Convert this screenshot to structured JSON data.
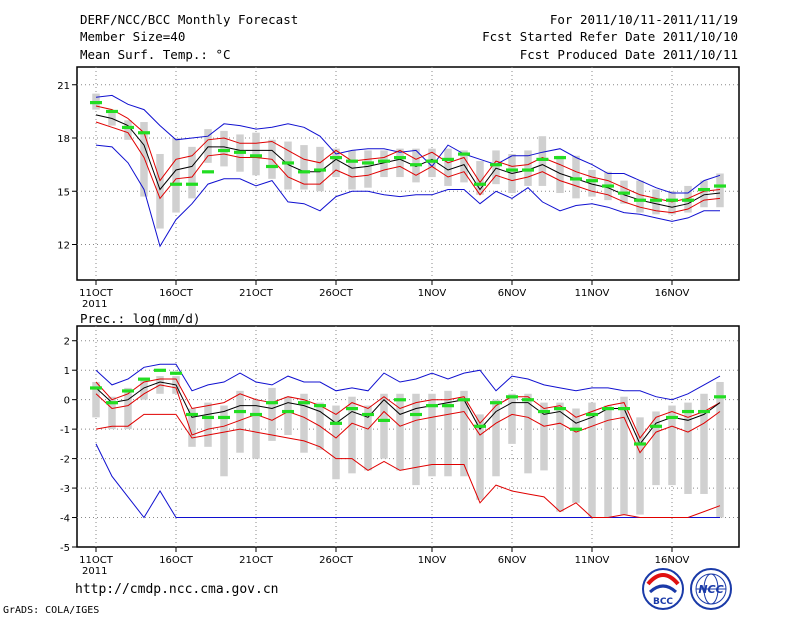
{
  "header": {
    "title": "DERF/NCC/BCC Monthly Forecast",
    "member_size": "Member Size=40",
    "variable_top": "Mean Surf. Temp.: °C",
    "period": "For 2011/10/11-2011/11/19",
    "fcst_started": "Fcst Started Refer Date 2011/10/10",
    "fcst_produced": "Fcst Produced Date 2011/10/11"
  },
  "bottom_label": "Prec.: log(mm/d)",
  "footer": {
    "url": "http://cmdp.ncc.cma.gov.cn",
    "grads": "GrADS: COLA/IGES",
    "logo1_text": "BCC",
    "logo2_text": "NCC"
  },
  "colors": {
    "envelope": "#1010d0",
    "spread": "#e00000",
    "mean": "#000000",
    "box": "#d0d0d0",
    "observed": "#22dd22"
  },
  "chart_data": [
    {
      "type": "line",
      "title": "Mean Surf. Temp.: °C",
      "x": [
        1,
        2,
        3,
        4,
        5,
        6,
        7,
        8,
        9,
        10,
        11,
        12,
        13,
        14,
        15,
        16,
        17,
        18,
        19,
        20,
        21,
        22,
        23,
        24,
        25,
        26,
        27,
        28,
        28.9,
        30,
        31,
        32,
        33,
        34,
        35,
        36,
        37,
        38,
        39,
        40
      ],
      "xticks": [
        {
          "d": 1,
          "label": "11OCT"
        },
        {
          "d": 6,
          "label": "16OCT"
        },
        {
          "d": 11,
          "label": "21OCT"
        },
        {
          "d": 16,
          "label": "26OCT"
        },
        {
          "d": 22,
          "label": "1NOV"
        },
        {
          "d": 27,
          "label": "6NOV"
        },
        {
          "d": 32,
          "label": "11NOV"
        },
        {
          "d": 37,
          "label": "16NOV"
        }
      ],
      "year_label": "2011",
      "ylim": [
        10,
        22
      ],
      "yticks": [
        12,
        15,
        18,
        21
      ],
      "series": [
        {
          "name": "max",
          "values": [
            20.3,
            20.4,
            19.9,
            19.6,
            18.7,
            17.9,
            18.0,
            18.1,
            18.8,
            18.7,
            18.5,
            18.6,
            18.8,
            18.6,
            18.1,
            17.1,
            17.3,
            17.4,
            17.4,
            17.2,
            17.3,
            16.4,
            17.6,
            17.1,
            16.8,
            16.5,
            17.0,
            17.0,
            17.2,
            17.4,
            16.9,
            16.5,
            16.0,
            16.0,
            15.6,
            15.2,
            14.9,
            14.9,
            15.6,
            15.9
          ]
        },
        {
          "name": "min",
          "values": [
            17.6,
            17.5,
            16.6,
            15.1,
            11.9,
            13.4,
            14.3,
            15.4,
            15.7,
            15.7,
            15.3,
            15.6,
            14.4,
            14.3,
            13.9,
            14.7,
            15.0,
            15.0,
            14.8,
            14.7,
            14.8,
            14.8,
            15.1,
            15.1,
            14.3,
            15.0,
            14.6,
            15.2,
            14.4,
            13.9,
            14.2,
            14.3,
            14.1,
            13.8,
            13.7,
            13.5,
            13.3,
            13.5,
            13.9,
            13.9
          ]
        },
        {
          "name": "upper",
          "values": [
            19.8,
            19.6,
            19.1,
            18.3,
            15.6,
            16.8,
            17.0,
            17.9,
            18.0,
            17.7,
            17.7,
            17.8,
            17.3,
            16.8,
            16.6,
            17.3,
            16.7,
            16.8,
            16.9,
            17.3,
            16.8,
            17.2,
            16.6,
            16.9,
            15.5,
            16.7,
            16.4,
            16.5,
            16.9,
            16.5,
            16.1,
            15.8,
            15.6,
            15.2,
            14.8,
            14.6,
            14.4,
            14.6,
            15.0,
            15.1
          ]
        },
        {
          "name": "lower",
          "values": [
            18.9,
            18.6,
            18.3,
            16.9,
            14.6,
            15.7,
            15.8,
            17.0,
            17.1,
            16.9,
            16.9,
            16.8,
            15.8,
            15.4,
            15.4,
            16.2,
            15.8,
            15.9,
            16.2,
            16.4,
            15.9,
            16.4,
            15.8,
            16.1,
            14.8,
            15.9,
            15.6,
            15.8,
            16.1,
            15.6,
            15.3,
            15.0,
            14.8,
            14.4,
            14.1,
            13.9,
            13.8,
            14.0,
            14.5,
            14.6
          ]
        },
        {
          "name": "mean",
          "values": [
            19.3,
            19.1,
            18.7,
            17.6,
            15.1,
            16.2,
            16.4,
            17.5,
            17.5,
            17.3,
            17.3,
            17.3,
            16.5,
            16.1,
            16.1,
            16.8,
            16.3,
            16.4,
            16.6,
            16.8,
            16.4,
            16.8,
            16.2,
            16.5,
            15.1,
            16.3,
            16.0,
            16.2,
            16.5,
            16.0,
            15.7,
            15.4,
            15.2,
            14.8,
            14.5,
            14.3,
            14.1,
            14.3,
            14.8,
            14.9
          ]
        },
        {
          "name": "box_top",
          "values": [
            20.5,
            19.4,
            19.0,
            18.9,
            17.1,
            18.0,
            17.5,
            18.5,
            18.4,
            18.2,
            18.3,
            17.9,
            17.8,
            17.6,
            17.5,
            17.4,
            17.3,
            17.3,
            17.3,
            17.4,
            17.4,
            17.4,
            17.4,
            17.3,
            16.7,
            17.3,
            17.1,
            17.3,
            18.1,
            17.0,
            17.0,
            16.2,
            16.1,
            15.6,
            15.6,
            15.1,
            15.0,
            15.3,
            15.6,
            16.0
          ]
        },
        {
          "name": "box_bottom",
          "values": [
            19.6,
            18.7,
            17.9,
            14.7,
            12.9,
            13.8,
            14.6,
            16.6,
            16.4,
            16.1,
            15.9,
            15.7,
            15.1,
            15.1,
            15.0,
            15.8,
            15.1,
            15.2,
            15.8,
            15.8,
            15.5,
            15.8,
            15.3,
            15.5,
            14.8,
            15.4,
            14.9,
            15.3,
            15.3,
            14.9,
            14.6,
            14.7,
            14.5,
            14.3,
            13.8,
            13.7,
            13.7,
            13.8,
            14.1,
            14.1
          ]
        },
        {
          "name": "observed",
          "values": [
            20.0,
            19.5,
            18.6,
            18.3,
            null,
            15.4,
            15.4,
            16.1,
            17.3,
            17.2,
            17.0,
            16.4,
            16.6,
            16.1,
            16.2,
            16.9,
            16.7,
            16.6,
            16.7,
            16.9,
            16.5,
            16.7,
            16.8,
            17.1,
            15.4,
            16.5,
            16.2,
            16.2,
            16.8,
            16.9,
            15.7,
            15.6,
            15.3,
            14.9,
            14.5,
            14.5,
            14.5,
            14.5,
            15.1,
            15.3
          ]
        }
      ]
    },
    {
      "type": "line",
      "title": "Prec.: log(mm/d)",
      "x": [
        1,
        2,
        3,
        4,
        5,
        6,
        7,
        8,
        9,
        10,
        11,
        12,
        13,
        14,
        15,
        16,
        17,
        18,
        19,
        20,
        21,
        22,
        23,
        24,
        25,
        26,
        27,
        28,
        29,
        30,
        31,
        32,
        33,
        34,
        35,
        36,
        37,
        38,
        39,
        40
      ],
      "xticks": [
        {
          "d": 1,
          "label": "11OCT"
        },
        {
          "d": 6,
          "label": "16OCT"
        },
        {
          "d": 11,
          "label": "21OCT"
        },
        {
          "d": 16,
          "label": "26OCT"
        },
        {
          "d": 22,
          "label": "1NOV"
        },
        {
          "d": 27,
          "label": "6NOV"
        },
        {
          "d": 32,
          "label": "11NOV"
        },
        {
          "d": 37,
          "label": "16NOV"
        }
      ],
      "year_label": "2011",
      "ylim": [
        -5,
        2.5
      ],
      "yticks": [
        -5,
        -4,
        -3,
        -2,
        -1,
        0,
        1,
        2
      ],
      "series": [
        {
          "name": "max",
          "values": [
            1.0,
            0.5,
            0.7,
            1.1,
            1.2,
            1.2,
            0.3,
            0.5,
            0.6,
            0.9,
            0.6,
            0.5,
            0.8,
            0.6,
            0.6,
            0.3,
            0.4,
            0.3,
            0.9,
            0.6,
            0.7,
            0.9,
            0.7,
            0.9,
            1.0,
            0.3,
            0.8,
            0.7,
            0.5,
            0.4,
            0.3,
            0.4,
            0.4,
            0.3,
            0.3,
            0.1,
            0.0,
            0.2,
            0.5,
            0.8
          ]
        },
        {
          "name": "min",
          "values": [
            -1.5,
            -2.6,
            -3.3,
            -4.0,
            -3.1,
            -4.0,
            -4.0,
            -4.0,
            -4.0,
            -4.0,
            -4.0,
            -4.0,
            -4.0,
            -4.0,
            -4.0,
            -4.0,
            -4.0,
            -4.0,
            -4.0,
            -4.0,
            -4.0,
            -4.0,
            -4.0,
            -4.0,
            -4.0,
            -4.0,
            -4.0,
            -4.0,
            -4.0,
            -4.0,
            -4.0,
            -4.0,
            -4.0,
            -4.0,
            -4.0,
            -4.0,
            -4.0,
            -4.0,
            -4.0,
            -4.0
          ]
        },
        {
          "name": "upper",
          "values": [
            0.6,
            0.0,
            0.2,
            0.6,
            0.7,
            0.7,
            -0.3,
            -0.2,
            -0.1,
            0.2,
            0.0,
            -0.1,
            0.1,
            0.0,
            -0.2,
            -0.5,
            -0.1,
            -0.3,
            0.1,
            -0.3,
            -0.1,
            0.0,
            0.0,
            0.1,
            -0.8,
            -0.2,
            0.1,
            0.1,
            -0.3,
            -0.2,
            -0.6,
            -0.4,
            -0.2,
            -0.1,
            -1.3,
            -0.6,
            -0.4,
            -0.6,
            -0.4,
            -0.1
          ]
        },
        {
          "name": "lower",
          "values": [
            0.2,
            -0.3,
            -0.2,
            0.2,
            0.5,
            0.4,
            -1.2,
            -1.0,
            -0.9,
            -0.7,
            -0.5,
            -0.7,
            -0.4,
            -0.6,
            -0.9,
            -1.3,
            -0.8,
            -1.0,
            -0.4,
            -0.9,
            -0.7,
            -0.6,
            -0.5,
            -0.4,
            -1.2,
            -0.8,
            -0.5,
            -0.6,
            -0.9,
            -0.8,
            -1.1,
            -0.9,
            -0.7,
            -0.6,
            -1.8,
            -1.1,
            -0.9,
            -1.1,
            -0.8,
            -0.4
          ]
        },
        {
          "name": "lowest",
          "values": [
            -1.0,
            -0.9,
            -0.9,
            -0.5,
            -0.5,
            -0.5,
            -1.3,
            -1.2,
            -1.1,
            -1.0,
            -1.1,
            -1.2,
            -1.3,
            -1.4,
            -1.6,
            -2.0,
            -2.0,
            -2.4,
            -2.1,
            -2.4,
            -2.3,
            -2.2,
            -2.2,
            -2.2,
            -3.5,
            -2.9,
            -3.1,
            -3.2,
            -3.3,
            -3.8,
            -3.5,
            -4.0,
            -4.0,
            -3.9,
            -4.0,
            -4.0,
            -4.0,
            -4.0,
            -3.8,
            -3.6
          ]
        },
        {
          "name": "mean",
          "values": [
            0.4,
            -0.1,
            0.0,
            0.4,
            0.6,
            0.5,
            -0.6,
            -0.5,
            -0.4,
            -0.2,
            -0.2,
            -0.3,
            -0.1,
            -0.2,
            -0.4,
            -0.8,
            -0.4,
            -0.6,
            0.0,
            -0.5,
            -0.3,
            -0.2,
            -0.1,
            0.0,
            -1.0,
            -0.4,
            -0.1,
            -0.1,
            -0.5,
            -0.4,
            -0.8,
            -0.6,
            -0.3,
            -0.3,
            -1.5,
            -0.8,
            -0.6,
            -0.7,
            -0.5,
            -0.1
          ]
        },
        {
          "name": "box_top",
          "values": [
            0.6,
            0.1,
            0.4,
            0.7,
            0.8,
            0.8,
            -0.3,
            -0.1,
            -0.2,
            0.3,
            0.0,
            0.4,
            0.1,
            0.2,
            -0.1,
            -0.2,
            0.1,
            -0.2,
            0.2,
            0.2,
            0.2,
            0.2,
            0.3,
            0.3,
            -0.5,
            0.0,
            0.2,
            0.2,
            -0.1,
            -0.1,
            -0.3,
            -0.1,
            -0.2,
            0.1,
            -0.6,
            -0.4,
            -0.2,
            -0.1,
            0.2,
            0.6
          ]
        },
        {
          "name": "box_bottom",
          "values": [
            -0.6,
            -1.0,
            -1.0,
            0.0,
            0.2,
            0.2,
            -1.6,
            -1.6,
            -2.6,
            -1.8,
            -2.0,
            -1.4,
            -1.2,
            -1.8,
            -1.7,
            -2.7,
            -2.5,
            -2.4,
            -2.0,
            -2.4,
            -2.9,
            -2.6,
            -2.6,
            -2.6,
            -3.4,
            -2.6,
            -1.5,
            -2.5,
            -2.4,
            -3.8,
            -3.5,
            -4.0,
            -4.0,
            -3.9,
            -3.9,
            -2.9,
            -2.9,
            -3.2,
            -3.2,
            -4.0
          ]
        },
        {
          "name": "observed",
          "values": [
            0.4,
            -0.1,
            0.3,
            0.7,
            1.0,
            0.9,
            -0.5,
            -0.6,
            -0.6,
            -0.4,
            -0.5,
            -0.1,
            -0.4,
            -0.1,
            -0.2,
            -0.8,
            -0.3,
            -0.5,
            -0.7,
            0.0,
            -0.5,
            -0.2,
            -0.2,
            0.0,
            -0.9,
            -0.1,
            0.1,
            0.0,
            -0.4,
            -0.3,
            -1.0,
            -0.5,
            -0.3,
            -0.3,
            -1.5,
            -0.9,
            -0.6,
            -0.4,
            -0.4,
            0.1
          ]
        }
      ]
    }
  ]
}
